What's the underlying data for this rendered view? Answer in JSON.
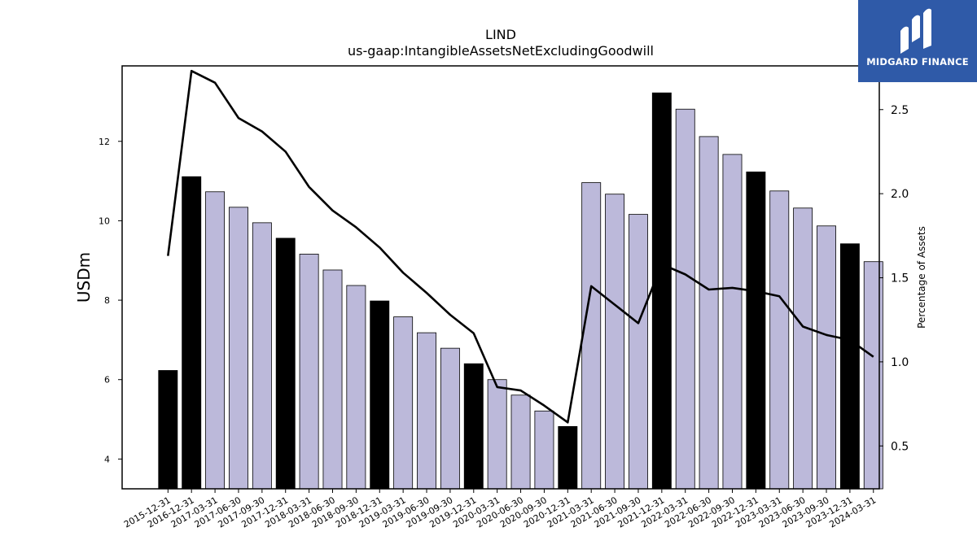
{
  "brand": {
    "name": "MIDGARD FINANCE",
    "bg_color": "#2f5aa8"
  },
  "chart_data": {
    "type": "bar",
    "title": "LIND",
    "subtitle": "us-gaap:IntangibleAssetsNetExcludingGoodwill",
    "ylabel": "USDm",
    "y2label": "Percentage of Assets",
    "xlabel": "",
    "ylim": [
      3.25,
      13.9
    ],
    "y2lim": [
      0.245,
      2.76
    ],
    "yticks": [
      4,
      6,
      8,
      10,
      12
    ],
    "y2ticks": [
      0.5,
      1.0,
      1.5,
      2.0,
      2.5
    ],
    "grid": false,
    "categories": [
      "2015-12-31",
      "2016-12-31",
      "2017-03-31",
      "2017-06-30",
      "2017-09-30",
      "2017-12-31",
      "2018-03-31",
      "2018-06-30",
      "2018-09-30",
      "2018-12-31",
      "2019-03-31",
      "2019-06-30",
      "2019-09-30",
      "2019-12-31",
      "2020-03-31",
      "2020-06-30",
      "2020-09-30",
      "2020-12-31",
      "2021-03-31",
      "2021-06-30",
      "2021-09-30",
      "2021-12-31",
      "2022-03-31",
      "2022-06-30",
      "2022-09-30",
      "2022-12-31",
      "2023-03-31",
      "2023-06-30",
      "2023-09-30",
      "2023-12-31",
      "2024-03-31"
    ],
    "series": [
      {
        "kind": "bar",
        "axis": "left",
        "values": [
          6.23,
          11.11,
          10.73,
          10.34,
          9.95,
          9.56,
          9.16,
          8.76,
          8.37,
          7.98,
          7.58,
          7.18,
          6.79,
          6.4,
          6.0,
          5.61,
          5.21,
          4.82,
          10.96,
          10.67,
          10.16,
          13.22,
          12.81,
          12.12,
          11.67,
          11.23,
          10.75,
          10.32,
          9.87,
          9.42,
          8.97
        ],
        "annual": [
          true,
          true,
          false,
          false,
          false,
          true,
          false,
          false,
          false,
          true,
          false,
          false,
          false,
          true,
          false,
          false,
          false,
          true,
          false,
          false,
          false,
          true,
          false,
          false,
          false,
          true,
          false,
          false,
          false,
          true,
          false
        ],
        "color_annual": "#000000",
        "color_quarterly": "#bcb9da"
      },
      {
        "kind": "line",
        "axis": "right",
        "color": "#000000",
        "values": [
          1.63,
          2.73,
          2.66,
          2.45,
          2.37,
          2.25,
          2.04,
          1.9,
          1.8,
          1.68,
          1.53,
          1.41,
          1.28,
          1.17,
          0.85,
          0.83,
          0.74,
          0.64,
          1.45,
          1.34,
          1.23,
          1.58,
          1.52,
          1.43,
          1.44,
          1.42,
          1.39,
          1.21,
          1.16,
          1.13,
          1.03
        ]
      }
    ]
  }
}
